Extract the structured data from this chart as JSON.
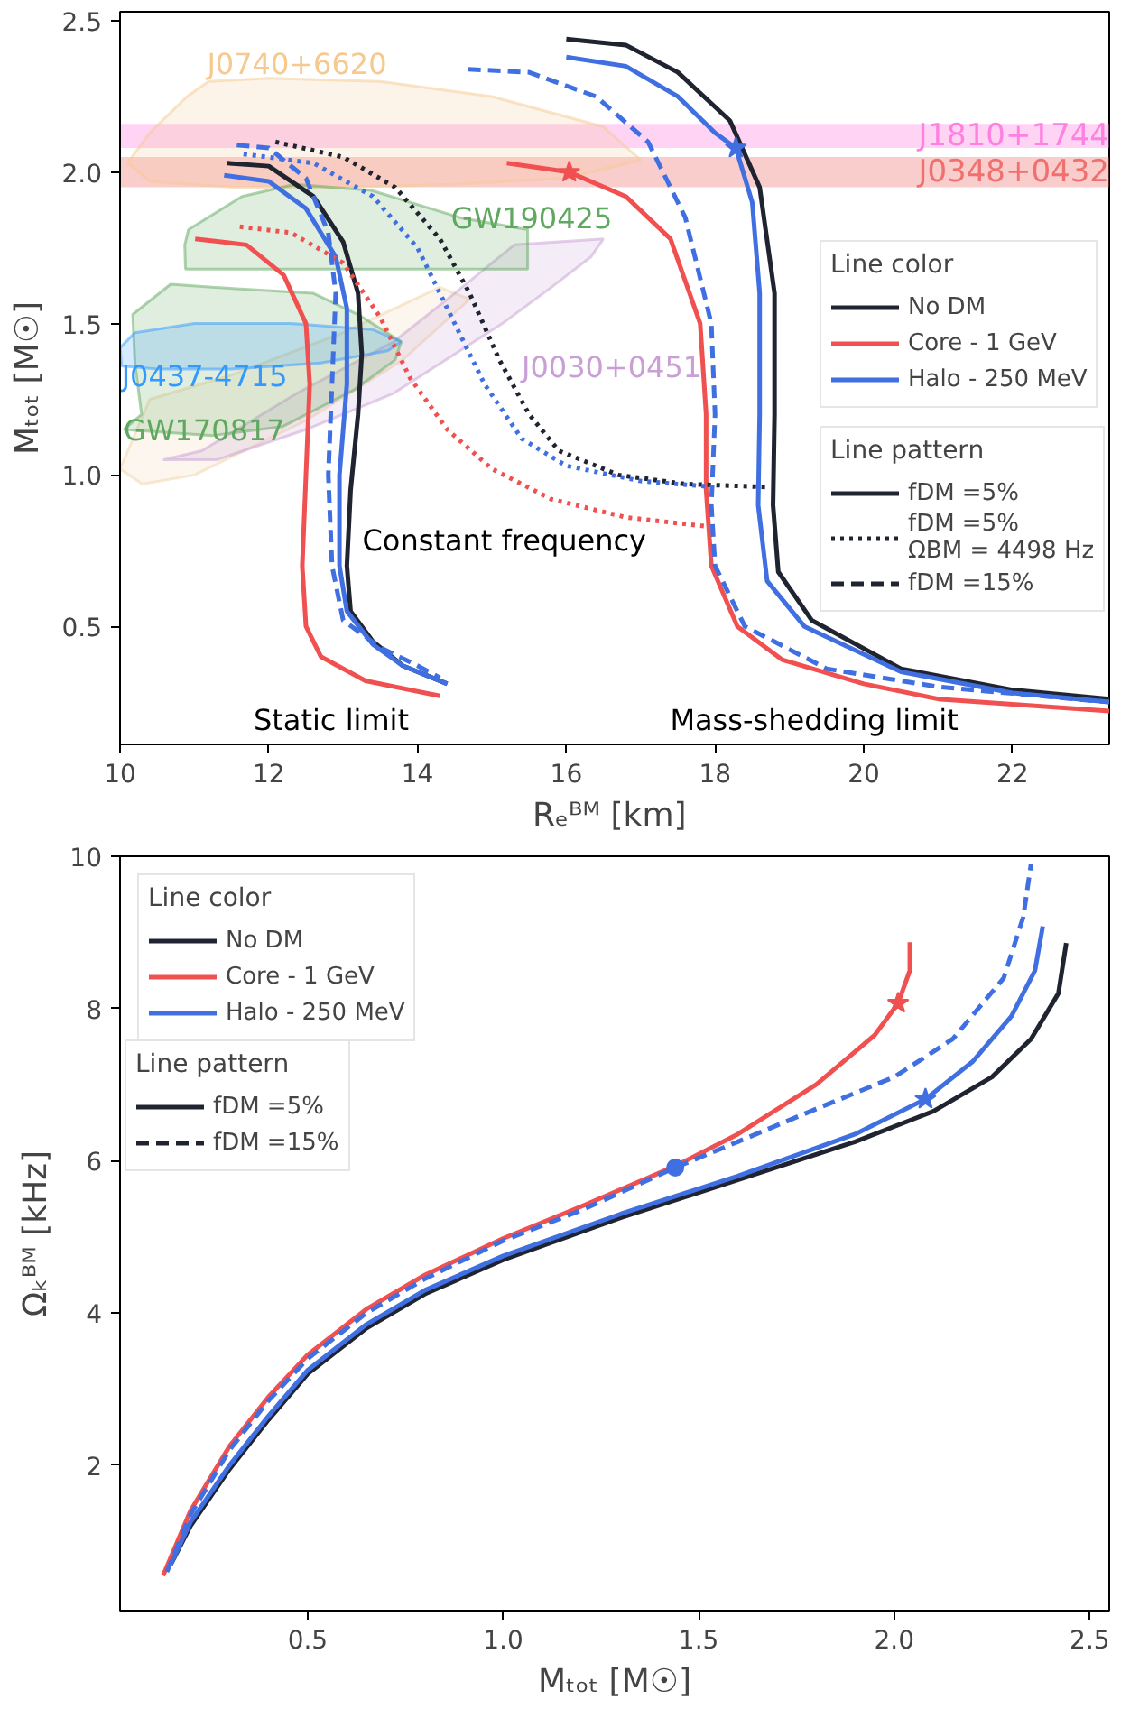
{
  "chart_data": [
    {
      "type": "line",
      "xlabel": "Rₑᴮᴹ  [km]",
      "ylabel": "Mₜₒₜ [M☉]",
      "legend_title": "Line color",
      "legend": "right",
      "grid": false,
      "xlim": [
        10,
        23.3
      ],
      "ylim": [
        0.11,
        2.53
      ],
      "xticks": [
        10,
        12,
        14,
        16,
        18,
        20,
        22
      ],
      "yticks": [
        0.5,
        {
          "value": 1.0,
          "label": "1.0"
        },
        1.5,
        {
          "value": 2.0,
          "label": "2.0"
        },
        2.5
      ],
      "bands": [
        {
          "axis": "y",
          "from": 2.08,
          "to": 2.16,
          "label": "J1810+1744",
          "color": "#ff80e0"
        },
        {
          "axis": "y",
          "from": 1.95,
          "to": 2.05,
          "label": "J0348+0432",
          "color": "#f07070"
        }
      ],
      "series": [
        {
          "type": "area",
          "color": "#f5c98f",
          "x": [
            11.19,
            12.0,
            13.5,
            15.0,
            16.5,
            17.0,
            16.0,
            14.5,
            13.0,
            11.5,
            10.4,
            10.1,
            10.4,
            10.9
          ],
          "values": [
            2.3,
            2.31,
            2.3,
            2.25,
            2.15,
            2.04,
            1.98,
            1.96,
            1.95,
            1.95,
            1.97,
            2.03,
            2.13,
            2.25
          ]
        },
        {
          "type": "area",
          "color": "#f2d3a8",
          "x": [
            10.0,
            10.4,
            11.5,
            13.0,
            14.3,
            14.7,
            13.8,
            12.5,
            11.0,
            10.3
          ],
          "values": [
            1.02,
            1.25,
            1.33,
            1.47,
            1.62,
            1.58,
            1.38,
            1.18,
            1.0,
            0.97
          ]
        },
        {
          "type": "area",
          "color": "#c99fd6",
          "x": [
            15.14,
            15.8,
            16.33,
            16.5,
            15.3,
            14.5,
            13.68,
            12.38,
            11.1,
            10.58,
            11.3,
            12.5,
            13.68
          ],
          "values": [
            1.5,
            1.62,
            1.72,
            1.78,
            1.76,
            1.6,
            1.44,
            1.27,
            1.08,
            1.05,
            1.05,
            1.15,
            1.27
          ]
        },
        {
          "type": "area",
          "color": "#5fa85f",
          "x": [
            10.92,
            11.64,
            12.35,
            13.38,
            14.57,
            15.48,
            15.48,
            13.0,
            10.88,
            10.87
          ],
          "values": [
            1.81,
            1.92,
            1.96,
            1.94,
            1.85,
            1.81,
            1.68,
            1.68,
            1.68,
            1.76
          ]
        },
        {
          "type": "area",
          "color": "#5fa85f",
          "x": [
            10.05,
            11.24,
            12.19,
            13.14,
            13.7,
            13.78,
            13.2,
            12.6,
            11.24,
            10.68,
            10.17,
            10.2,
            10.29
          ],
          "values": [
            1.15,
            1.13,
            1.16,
            1.28,
            1.38,
            1.44,
            1.53,
            1.6,
            1.62,
            1.63,
            1.53,
            1.37,
            1.2
          ]
        },
        {
          "type": "area",
          "color": "#3399ff",
          "x": [
            10.02,
            10.5,
            11.5,
            12.7,
            13.6,
            13.78,
            13.4,
            12.3,
            11.0,
            10.2,
            10.0
          ],
          "values": [
            1.36,
            1.35,
            1.35,
            1.37,
            1.41,
            1.44,
            1.48,
            1.5,
            1.5,
            1.47,
            1.42
          ]
        },
        {
          "name": "No DM",
          "color": "#1f2430",
          "line_style": "solid",
          "x": [
            11.44,
            12.0,
            12.6,
            13.0,
            13.2,
            13.25,
            13.2,
            13.1,
            13.05,
            13.1,
            13.4,
            13.8,
            14.4
          ],
          "values": [
            2.03,
            2.02,
            1.92,
            1.77,
            1.6,
            1.4,
            1.2,
            0.95,
            0.7,
            0.55,
            0.45,
            0.37,
            0.31
          ]
        },
        {
          "name": "Core - 1 GeV",
          "color": "#f05050",
          "line_style": "solid",
          "x": [
            11.01,
            11.7,
            12.2,
            12.5,
            12.55,
            12.5,
            12.45,
            12.5,
            12.7,
            13.3,
            14.3
          ],
          "values": [
            1.78,
            1.76,
            1.66,
            1.5,
            1.3,
            1.0,
            0.7,
            0.5,
            0.4,
            0.32,
            0.27
          ]
        },
        {
          "name": "Halo - 250 MeV",
          "color": "#3f6fe0",
          "line_style": "solid",
          "x": [
            11.4,
            12.0,
            12.5,
            12.9,
            13.05,
            13.05,
            12.95,
            12.95,
            13.05,
            13.4,
            13.8,
            14.4
          ],
          "values": [
            1.99,
            1.97,
            1.88,
            1.72,
            1.55,
            1.3,
            1.0,
            0.7,
            0.55,
            0.44,
            0.37,
            0.31
          ]
        },
        {
          "color": "#1f2430",
          "line_style": "solid",
          "x": [
            16.0,
            16.8,
            17.5,
            18.2,
            18.6,
            18.8,
            18.8,
            18.78,
            18.85,
            19.3,
            20.5,
            22.0,
            23.3
          ],
          "values": [
            2.44,
            2.42,
            2.33,
            2.17,
            1.95,
            1.6,
            1.2,
            0.9,
            0.68,
            0.52,
            0.36,
            0.29,
            0.26
          ]
        },
        {
          "color": "#f05050",
          "line_style": "solid",
          "x": [
            15.2,
            16.04,
            16.8,
            17.4,
            17.8,
            17.88,
            17.88,
            17.95,
            18.3,
            18.9,
            20.0,
            21.0,
            23.3
          ],
          "values": [
            2.03,
            2.0,
            1.92,
            1.78,
            1.5,
            1.2,
            0.95,
            0.7,
            0.5,
            0.39,
            0.31,
            0.26,
            0.22
          ]
        },
        {
          "color": "#3f6fe0",
          "line_style": "solid",
          "x": [
            16.0,
            16.8,
            17.5,
            18.0,
            18.28,
            18.5,
            18.6,
            18.6,
            18.58,
            18.7,
            19.2,
            20.5,
            22.0,
            23.3
          ],
          "values": [
            2.38,
            2.35,
            2.25,
            2.13,
            2.08,
            1.9,
            1.6,
            1.2,
            0.9,
            0.65,
            0.5,
            0.35,
            0.28,
            0.25
          ]
        },
        {
          "color": "#1f2430",
          "line_style": "dotted",
          "x": [
            12.09,
            13.0,
            13.7,
            14.3,
            14.7,
            15.1,
            15.5,
            15.9,
            16.7,
            17.6,
            18.7
          ],
          "values": [
            2.1,
            2.05,
            1.95,
            1.78,
            1.6,
            1.38,
            1.2,
            1.08,
            1.0,
            0.97,
            0.96
          ]
        },
        {
          "color": "#3f6fe0",
          "line_style": "dotted",
          "x": [
            11.66,
            12.6,
            13.4,
            14.0,
            14.5,
            14.9,
            15.4,
            16.0,
            17.0,
            18.0
          ],
          "values": [
            2.06,
            2.03,
            1.92,
            1.75,
            1.5,
            1.3,
            1.12,
            1.03,
            0.98,
            0.96
          ]
        },
        {
          "color": "#f05050",
          "line_style": "dotted",
          "x": [
            11.61,
            12.3,
            13.0,
            13.5,
            13.9,
            14.4,
            15.0,
            15.8,
            16.8,
            17.89
          ],
          "values": [
            1.82,
            1.8,
            1.7,
            1.52,
            1.32,
            1.15,
            1.02,
            0.92,
            0.86,
            0.83
          ]
        },
        {
          "color": "#3f6fe0",
          "line_style": "dashed",
          "x": [
            11.57,
            12.0,
            12.5,
            12.8,
            12.9,
            12.85,
            12.8,
            12.85,
            13.0,
            13.5,
            14.0,
            14.3
          ],
          "values": [
            2.09,
            2.08,
            1.98,
            1.8,
            1.6,
            1.3,
            1.0,
            0.7,
            0.52,
            0.43,
            0.37,
            0.33
          ]
        },
        {
          "color": "#3f6fe0",
          "line_style": "dashed",
          "x": [
            14.68,
            15.5,
            16.4,
            17.1,
            17.6,
            17.95,
            18.0,
            17.95,
            18.0,
            18.4,
            19.5,
            21.0,
            23.3
          ],
          "values": [
            2.34,
            2.33,
            2.25,
            2.1,
            1.85,
            1.5,
            1.2,
            0.9,
            0.7,
            0.5,
            0.36,
            0.3,
            0.25
          ]
        },
        {
          "type": "scatter",
          "marker": "star",
          "color": "#f05050",
          "x": [
            16.04
          ],
          "values": [
            2.0
          ]
        },
        {
          "type": "scatter",
          "marker": "star",
          "color": "#3f6fe0",
          "x": [
            18.28
          ],
          "values": [
            2.08
          ]
        }
      ],
      "annotations": [
        "Line pattern",
        "fDM =5%",
        "fDM =5%\nΩBM = 4498 Hz",
        "fDM =15%",
        "Static limit",
        "Constant frequency",
        "Mass-shedding limit",
        "J0437-4715",
        {
          "text": "J0740+6620",
          "x": 11.17,
          "y": 2.3
        },
        {
          "text": "GW190425",
          "x": 14.45,
          "y": 1.79
        },
        {
          "text": "J0030+0451",
          "x": 15.4,
          "y": 1.3
        },
        {
          "text": "GW170817",
          "x": 10.05,
          "y": 1.09
        }
      ]
    },
    {
      "type": "line",
      "xlabel": "Mₜₒₜ [M☉]",
      "ylabel": "Ωₖᴮᴹ [kHz]",
      "legend_title": "Line color",
      "legend": "top left",
      "grid": false,
      "xlim": [
        0.02,
        2.55
      ],
      "ylim": [
        0.09,
        10.0
      ],
      "xticks": [
        0.5,
        {
          "value": 1.0,
          "label": "1.0"
        },
        1.5,
        {
          "value": 2.0,
          "label": "2.0"
        },
        2.5
      ],
      "yticks": [
        2,
        4,
        6,
        8,
        10
      ],
      "series": [
        {
          "name": "No DM",
          "color": "#1f2430",
          "line_style": "solid",
          "x": [
            0.15,
            0.2,
            0.3,
            0.4,
            0.5,
            0.65,
            0.8,
            1.0,
            1.3,
            1.6,
            1.9,
            2.1,
            2.25,
            2.35,
            2.42,
            2.44
          ],
          "values": [
            0.7,
            1.2,
            1.95,
            2.6,
            3.2,
            3.8,
            4.25,
            4.7,
            5.25,
            5.75,
            6.25,
            6.65,
            7.1,
            7.6,
            8.2,
            8.86
          ]
        },
        {
          "name": "Core - 1 GeV",
          "color": "#f05050",
          "line_style": "solid",
          "x": [
            0.13,
            0.2,
            0.3,
            0.4,
            0.5,
            0.65,
            0.8,
            1.0,
            1.2,
            1.44,
            1.6,
            1.8,
            1.95,
            2.01,
            2.04,
            2.04
          ],
          "values": [
            0.55,
            1.4,
            2.25,
            2.9,
            3.45,
            4.05,
            4.5,
            4.98,
            5.4,
            5.93,
            6.35,
            7.0,
            7.65,
            8.07,
            8.5,
            8.87
          ]
        },
        {
          "name": "Halo - 250 MeV",
          "color": "#3f6fe0",
          "line_style": "solid",
          "x": [
            0.15,
            0.2,
            0.3,
            0.4,
            0.5,
            0.65,
            0.8,
            1.0,
            1.3,
            1.6,
            1.9,
            2.08,
            2.2,
            2.3,
            2.36,
            2.38
          ],
          "values": [
            0.7,
            1.25,
            2.0,
            2.65,
            3.25,
            3.85,
            4.3,
            4.75,
            5.3,
            5.8,
            6.35,
            6.81,
            7.3,
            7.9,
            8.5,
            9.08
          ]
        },
        {
          "color": "#3f6fe0",
          "line_style": "dashed",
          "x": [
            0.14,
            0.2,
            0.3,
            0.4,
            0.5,
            0.65,
            0.8,
            1.0,
            1.2,
            1.44,
            1.6,
            1.8,
            2.0,
            2.15,
            2.28,
            2.33,
            2.35
          ],
          "values": [
            0.6,
            1.35,
            2.2,
            2.85,
            3.4,
            4.0,
            4.45,
            4.95,
            5.35,
            5.91,
            6.25,
            6.68,
            7.1,
            7.6,
            8.4,
            9.2,
            9.9
          ]
        },
        {
          "type": "scatter",
          "marker": "star",
          "color": "#f05050",
          "x": [
            2.01
          ],
          "values": [
            8.07
          ]
        },
        {
          "type": "scatter",
          "marker": "star",
          "color": "#3f6fe0",
          "x": [
            2.08
          ],
          "values": [
            6.81
          ]
        },
        {
          "type": "scatter",
          "marker": "circle",
          "color": "#3f6fe0",
          "x": [
            1.44
          ],
          "values": [
            5.91
          ]
        }
      ],
      "annotations": [
        "Line pattern",
        "fDM =5%",
        "fDM =15%"
      ]
    }
  ]
}
